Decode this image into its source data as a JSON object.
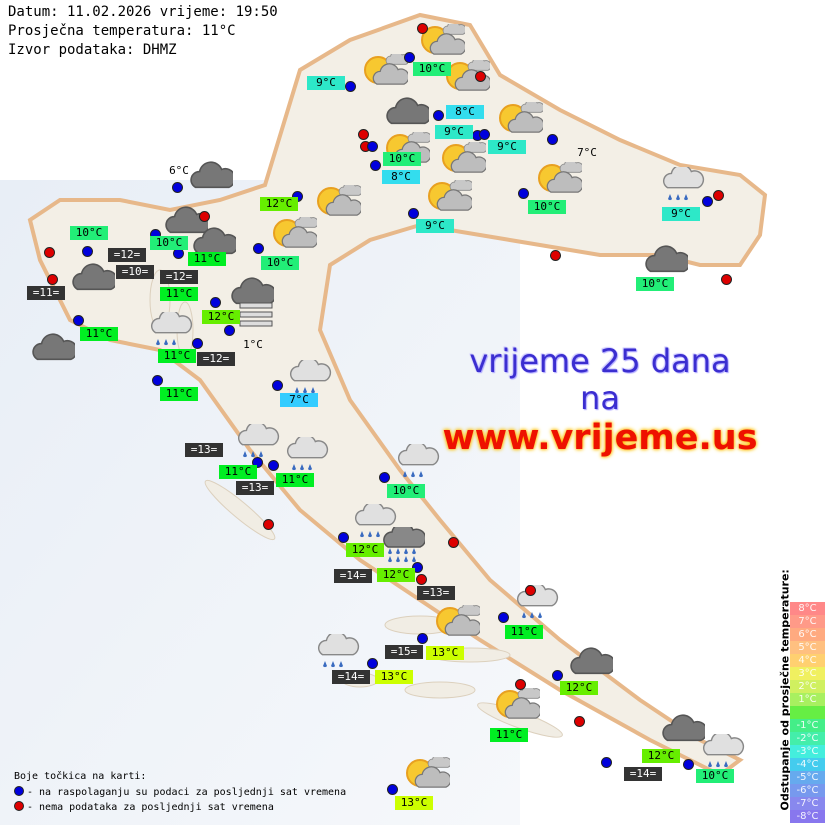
{
  "header": {
    "datetime": "Datum: 11.02.2026 vrijeme: 19:50",
    "avg_temp": "Prosječna temperatura: 11°C",
    "source": "Izvor podataka: DHMZ"
  },
  "banner": {
    "line1": "vrijeme 25 dana",
    "line2": "na",
    "line3": "www.vrijeme.us"
  },
  "colors": {
    "blue_dot": "#0000dd",
    "red_dot": "#dd0000",
    "sea_label_bg": "#333333"
  },
  "labels": [
    {
      "text": "10°C",
      "bg": "#22ee77"
    },
    {
      "text": "9°C",
      "bg": "#2de8c8"
    },
    {
      "text": "8°C",
      "bg": "#33ddee"
    },
    {
      "text": "9°C",
      "bg": "#2de8c8"
    },
    {
      "text": "9°C",
      "bg": "#2de8c8"
    },
    {
      "text": "10°C",
      "bg": "#22ee77"
    },
    {
      "text": "8°C",
      "bg": "#33ddee"
    },
    {
      "text": "7°C",
      "bg": "plain"
    },
    {
      "text": "6°C",
      "bg": "plain"
    },
    {
      "text": "12°C",
      "bg": "#66ee00"
    },
    {
      "text": "10°C",
      "bg": "#22ee77"
    },
    {
      "text": "9°C",
      "bg": "#2de8c8"
    },
    {
      "text": "9°C",
      "bg": "#2de8c8"
    },
    {
      "text": "10°C",
      "bg": "#22ee77"
    },
    {
      "text": "10°C",
      "bg": "#22ee77"
    },
    {
      "text": "=12=",
      "bg": "sea"
    },
    {
      "text": "10°C",
      "bg": "#22ee77"
    },
    {
      "text": "11°C",
      "bg": "#00ee22"
    },
    {
      "text": "=10=",
      "bg": "sea"
    },
    {
      "text": "=12=",
      "bg": "sea"
    },
    {
      "text": "11°C",
      "bg": "#00ee22"
    },
    {
      "text": "10°C",
      "bg": "#22ee77"
    },
    {
      "text": "=11=",
      "bg": "sea"
    },
    {
      "text": "12°C",
      "bg": "#66ee00"
    },
    {
      "text": "11°C",
      "bg": "#00ee22"
    },
    {
      "text": "1°C",
      "bg": "plain"
    },
    {
      "text": "11°C",
      "bg": "#00ee22"
    },
    {
      "text": "=12=",
      "bg": "sea"
    },
    {
      "text": "11°C",
      "bg": "#00ee22"
    },
    {
      "text": "7°C",
      "bg": "#33ccff"
    },
    {
      "text": "=13=",
      "bg": "sea"
    },
    {
      "text": "11°C",
      "bg": "#00ee22"
    },
    {
      "text": "11°C",
      "bg": "#00ee22"
    },
    {
      "text": "=13=",
      "bg": "sea"
    },
    {
      "text": "10°C",
      "bg": "#22ee77"
    },
    {
      "text": "12°C",
      "bg": "#66ee00"
    },
    {
      "text": "=14=",
      "bg": "sea"
    },
    {
      "text": "12°C",
      "bg": "#66ee00"
    },
    {
      "text": "=13=",
      "bg": "sea"
    },
    {
      "text": "11°C",
      "bg": "#00ee22"
    },
    {
      "text": "=15=",
      "bg": "sea"
    },
    {
      "text": "13°C",
      "bg": "#ccff00"
    },
    {
      "text": "=14=",
      "bg": "sea"
    },
    {
      "text": "13°C",
      "bg": "#ccff00"
    },
    {
      "text": "12°C",
      "bg": "#66ee00"
    },
    {
      "text": "11°C",
      "bg": "#00ee22"
    },
    {
      "text": "12°C",
      "bg": "#66ee00"
    },
    {
      "text": "=14=",
      "bg": "sea"
    },
    {
      "text": "10°C",
      "bg": "#22ee77"
    },
    {
      "text": "13°C",
      "bg": "#ccff00"
    }
  ],
  "station_dots": [
    "red",
    "blue",
    "red",
    "blue",
    "blue",
    "red",
    "red",
    "blue",
    "blue",
    "blue",
    "blue",
    "blue",
    "blue",
    "blue",
    "blue",
    "red",
    "blue",
    "blue",
    "blue",
    "blue",
    "blue",
    "blue",
    "red",
    "red",
    "red",
    "red",
    "blue",
    "blue",
    "blue",
    "blue",
    "blue",
    "blue",
    "blue",
    "blue",
    "blue",
    "red",
    "blue",
    "red",
    "blue",
    "red",
    "red",
    "blue",
    "blue",
    "blue",
    "blue",
    "red",
    "red",
    "blue",
    "blue",
    "blue",
    "red"
  ],
  "weather_icons": [
    "partly-cloudy",
    "partly-cloudy",
    "partly-cloudy",
    "partly-cloudy",
    "partly-cloudy",
    "partly-cloudy",
    "partly-cloudy",
    "partly-cloudy",
    "partly-cloudy",
    "partly-cloudy",
    "partly-cloudy",
    "partly-cloudy",
    "partly-cloudy",
    "overcast",
    "overcast",
    "overcast",
    "overcast",
    "overcast",
    "overcast",
    "overcast",
    "overcast",
    "overcast",
    "overcast",
    "light-rain",
    "light-rain",
    "light-rain",
    "light-rain",
    "light-rain",
    "light-rain",
    "light-rain",
    "light-rain",
    "light-rain",
    "light-rain",
    "heavy-rain",
    "fog"
  ],
  "scale": {
    "title": "Odstupanje od prosječne temperature:",
    "items": [
      {
        "text": "8°C",
        "color": "#ff8888"
      },
      {
        "text": "7°C",
        "color": "#ff9a88"
      },
      {
        "text": "6°C",
        "color": "#ffaa80"
      },
      {
        "text": "5°C",
        "color": "#ffc080"
      },
      {
        "text": "4°C",
        "color": "#ffd070"
      },
      {
        "text": "3°C",
        "color": "#f0f060"
      },
      {
        "text": "2°C",
        "color": "#d0f060"
      },
      {
        "text": "1°C",
        "color": "#a8f060"
      },
      {
        "text": "",
        "color": "#66ee44"
      },
      {
        "text": "-1°C",
        "color": "#44ee88"
      },
      {
        "text": "-2°C",
        "color": "#44eeaa"
      },
      {
        "text": "-3°C",
        "color": "#44eedd"
      },
      {
        "text": "-4°C",
        "color": "#44ccee"
      },
      {
        "text": "-5°C",
        "color": "#66aaee"
      },
      {
        "text": "-6°C",
        "color": "#7799ee"
      },
      {
        "text": "-7°C",
        "color": "#8888ee"
      },
      {
        "text": "-8°C",
        "color": "#8877ee"
      }
    ]
  },
  "legend": {
    "title": "Boje točkica na karti:",
    "blue": "- na raspolaganju su podaci za posljednji sat vremena",
    "red": "- nema podataka za posljednji sat vremena"
  }
}
